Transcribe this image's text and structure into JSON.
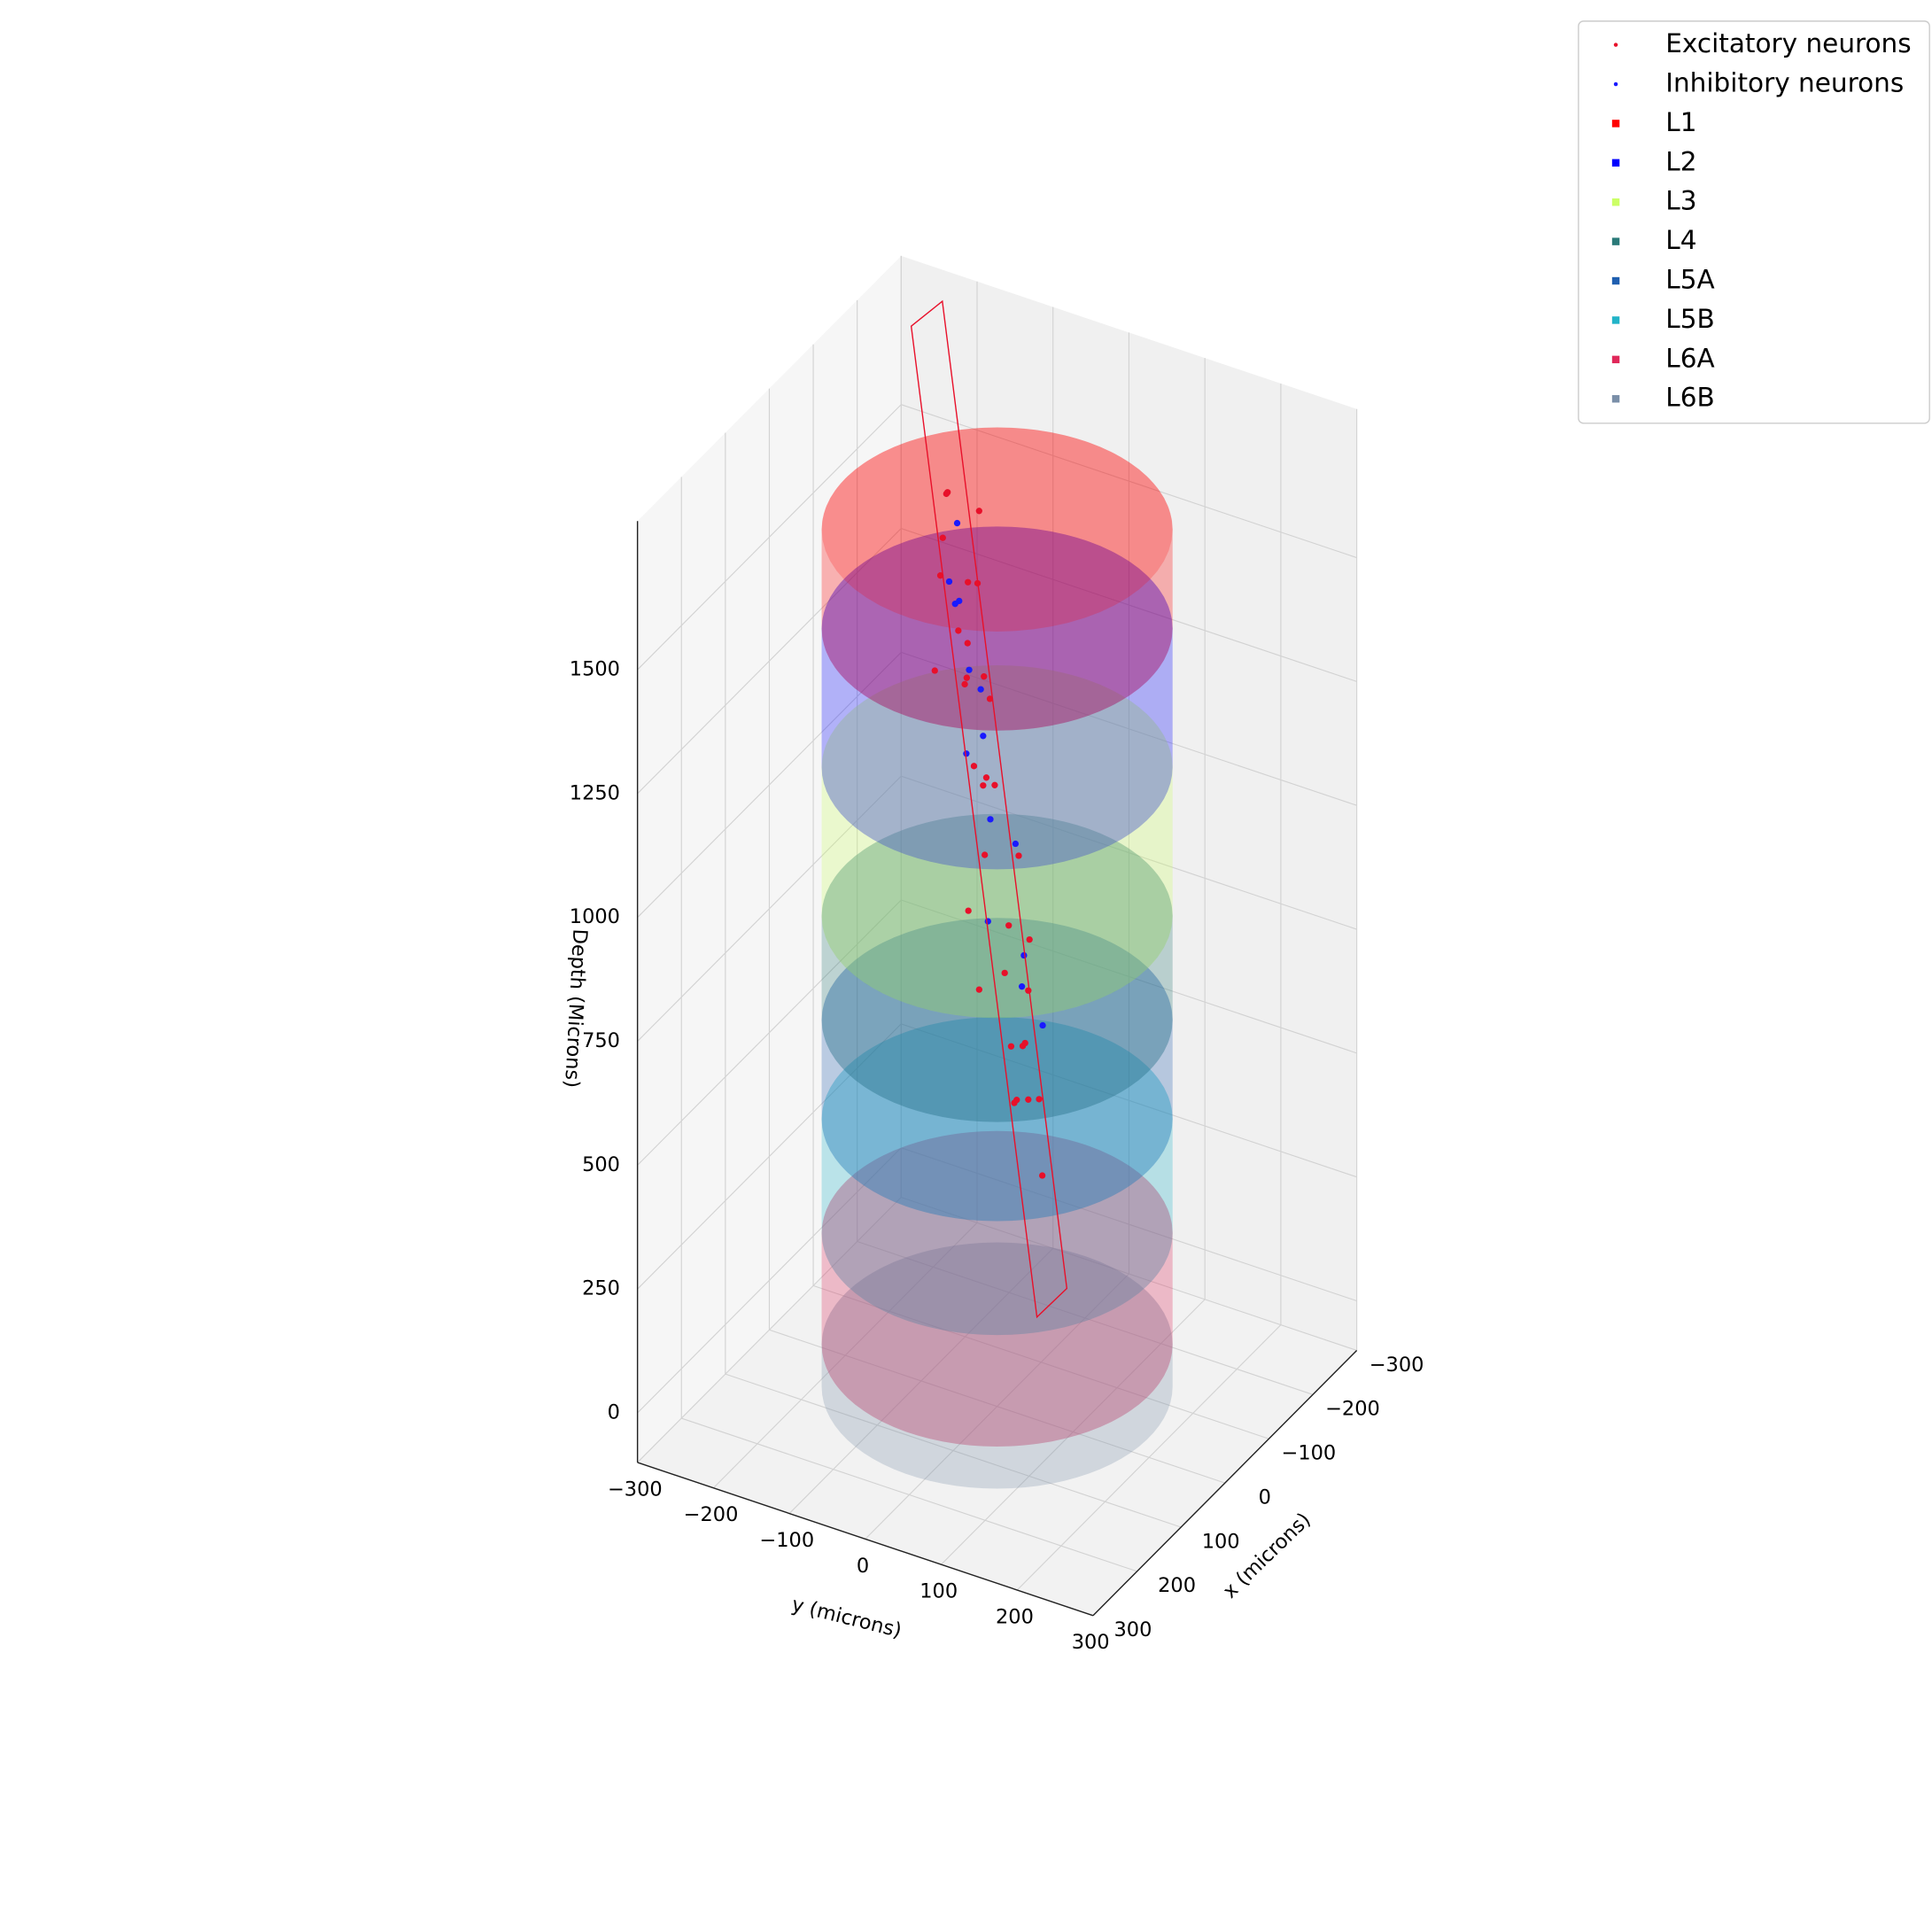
{
  "chart_data": {
    "type": "scatter3d",
    "xlabel": "x (microns)",
    "ylabel": "y (microns)",
    "zlabel": "Depth (Microns)",
    "xlim": [
      -300,
      300
    ],
    "ylim": [
      -300,
      300
    ],
    "zlim": [
      -100,
      1800
    ],
    "xticks": [
      {
        "value": -300,
        "label": "−300"
      },
      {
        "value": -200,
        "label": "−200"
      },
      {
        "value": -100,
        "label": "−100"
      },
      0,
      100,
      200,
      300
    ],
    "yticks": [
      {
        "value": -300,
        "label": "−300"
      },
      {
        "value": -200,
        "label": "−200"
      },
      {
        "value": -100,
        "label": "−100"
      },
      0,
      100,
      200,
      300
    ],
    "zticks": [
      0,
      250,
      500,
      750,
      1000,
      1250,
      1500
    ],
    "grid": true,
    "legend": "upper right",
    "series": [
      {
        "name": "Excitatory neurons",
        "color": "#e8102a",
        "x": [
          -40,
          20,
          60,
          -80,
          10,
          -20,
          50,
          90,
          -60,
          30,
          0,
          -30,
          70,
          40,
          -10,
          80,
          -50,
          20,
          100,
          60,
          -20,
          30,
          110,
          50,
          0,
          80,
          40,
          -70,
          20,
          60,
          30,
          -10,
          70,
          50
        ],
        "y": [
          -90,
          -60,
          -40,
          -70,
          -20,
          -50,
          -10,
          -30,
          -100,
          0,
          -40,
          -60,
          10,
          20,
          -20,
          30,
          -80,
          40,
          20,
          50,
          -30,
          60,
          40,
          70,
          10,
          80,
          60,
          -50,
          30,
          90,
          40,
          20,
          100,
          70
        ],
        "z": [
          1660,
          1640,
          1610,
          1600,
          1560,
          1520,
          1480,
          1450,
          1640,
          1400,
          1350,
          1300,
          1260,
          1200,
          1150,
          1100,
          1380,
          1050,
          1000,
          950,
          1120,
          900,
          860,
          820,
          780,
          740,
          700,
          1240,
          660,
          620,
          560,
          520,
          480,
          600
        ]
      },
      {
        "name": "Inhibitory neurons",
        "color": "#1a1aff",
        "x": [
          -30,
          40,
          0,
          -60,
          20,
          70,
          -20,
          50,
          10,
          90,
          -40,
          60,
          30,
          0
        ],
        "y": [
          -70,
          -40,
          -50,
          -90,
          -10,
          0,
          -30,
          20,
          30,
          40,
          -60,
          70,
          50,
          60
        ],
        "z": [
          1620,
          1580,
          1500,
          1420,
          1360,
          1280,
          1220,
          1140,
          1060,
          980,
          1320,
          900,
          800,
          700
        ]
      }
    ],
    "layer_radius": 200,
    "layers": [
      {
        "name": "L1",
        "color": "#ff0000",
        "depth": [
          1470,
          1670
        ]
      },
      {
        "name": "L2",
        "color": "#0000ff",
        "depth": [
          1190,
          1470
        ]
      },
      {
        "name": "L3",
        "color": "#ccff66",
        "depth": [
          890,
          1190
        ]
      },
      {
        "name": "L4",
        "color": "#2a7a78",
        "depth": [
          680,
          890
        ]
      },
      {
        "name": "L5A",
        "color": "#1f5fb0",
        "depth": [
          480,
          680
        ]
      },
      {
        "name": "L5B",
        "color": "#22b4c8",
        "depth": [
          250,
          480
        ]
      },
      {
        "name": "L6A",
        "color": "#e0285a",
        "depth": [
          25,
          250
        ]
      },
      {
        "name": "L6B",
        "color": "#7a8fa8",
        "depth": [
          -60,
          25
        ]
      }
    ]
  }
}
